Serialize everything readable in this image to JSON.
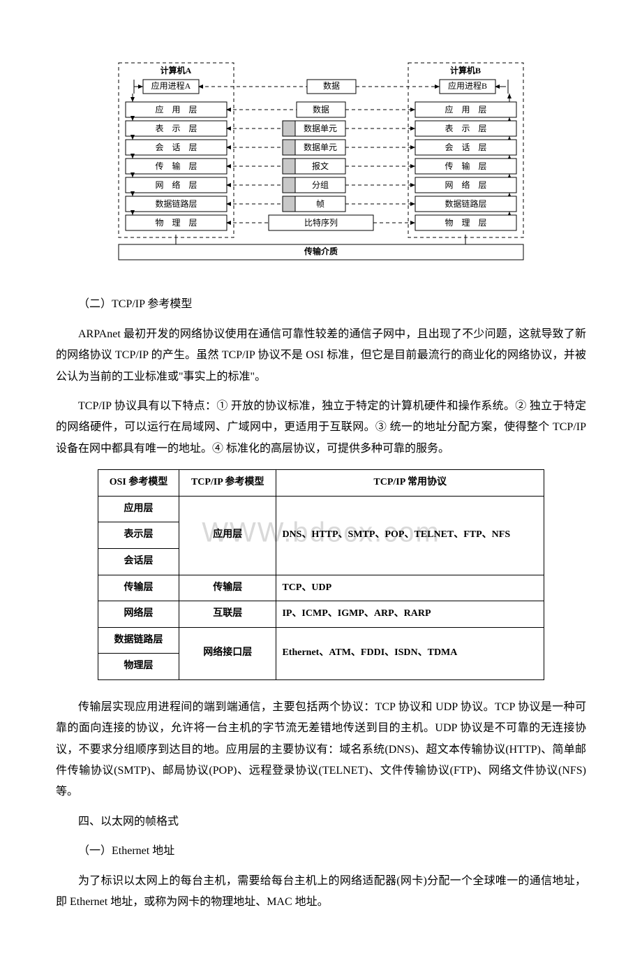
{
  "osi_diagram": {
    "computer_a": "计算机A",
    "computer_b": "计算机B",
    "process_a": "应用进程A",
    "process_b": "应用进程B",
    "layers_a": [
      "应　用　层",
      "表　示　层",
      "会　话　层",
      "传　输　层",
      "网　络　层",
      "数据链路层",
      "物　理　层"
    ],
    "layers_b": [
      "应　用　层",
      "表　示　层",
      "会　话　层",
      "传　输　层",
      "网　络　层",
      "数据链路层",
      "物　理　层"
    ],
    "center_items": [
      "数据",
      "数据",
      "数据单元",
      "数据单元",
      "报文",
      "分组",
      "帧",
      "比特序列"
    ],
    "medium": "传输介质",
    "colors": {
      "line": "#000000",
      "bg": "#ffffff",
      "header_fill": "#c8c8c8"
    }
  },
  "section2_title": "（二）TCP/IP 参考模型",
  "para1": "ARPAnet 最初开发的网络协议使用在通信可靠性较差的通信子网中，且出现了不少问题，这就导致了新的网络协议 TCP/IP 的产生。虽然 TCP/IP 协议不是 OSI 标准，但它是目前最流行的商业化的网络协议，并被公认为当前的工业标准或\"事实上的标准\"。",
  "para2": "TCP/IP 协议具有以下特点：① 开放的协议标准，独立于特定的计算机硬件和操作系统。② 独立于特定的网络硬件，可以运行在局域网、广域网中，更适用于互联网。③ 统一的地址分配方案，使得整个 TCP/IP 设备在网中都具有唯一的地址。④ 标准化的高层协议，可提供多种可靠的服务。",
  "watermark_text": "WWW.bdocx.com",
  "tcp_table": {
    "headers": [
      "OSI 参考模型",
      "TCP/IP 参考模型",
      "TCP/IP 常用协议"
    ],
    "rows": [
      {
        "osi": "应用层",
        "tcp": "应用层",
        "proto": "DNS、HTTP、SMTP、POP、TELNET、FTP、NFS",
        "tcp_rowspan": 3,
        "proto_rowspan": 3
      },
      {
        "osi": "表示层"
      },
      {
        "osi": "会话层"
      },
      {
        "osi": "传输层",
        "tcp": "传输层",
        "proto": "TCP、UDP"
      },
      {
        "osi": "网络层",
        "tcp": "互联层",
        "proto": "IP、ICMP、IGMP、ARP、RARP"
      },
      {
        "osi": "数据链路层",
        "tcp": "网络接口层",
        "proto": "Ethernet、ATM、FDDI、ISDN、TDMA",
        "tcp_rowspan": 2,
        "proto_rowspan": 2
      },
      {
        "osi": "物理层"
      }
    ]
  },
  "para3": "传输层实现应用进程间的端到端通信，主要包括两个协议：TCP 协议和 UDP 协议。TCP 协议是一种可靠的面向连接的协议，允许将一台主机的字节流无差错地传送到目的主机。UDP 协议是不可靠的无连接协议，不要求分组顺序到达目的地。应用层的主要协议有：域名系统(DNS)、超文本传输协议(HTTP)、简单邮件传输协议(SMTP)、邮局协议(POP)、远程登录协议(TELNET)、文件传输协议(FTP)、网络文件协议(NFS)等。",
  "section4_title": "四、以太网的帧格式",
  "section4_1_title": "（一）Ethernet 地址",
  "para4": "为了标识以太网上的每台主机，需要给每台主机上的网络适配器(网卡)分配一个全球唯一的通信地址，即 Ethernet 地址，或称为网卡的物理地址、MAC 地址。"
}
